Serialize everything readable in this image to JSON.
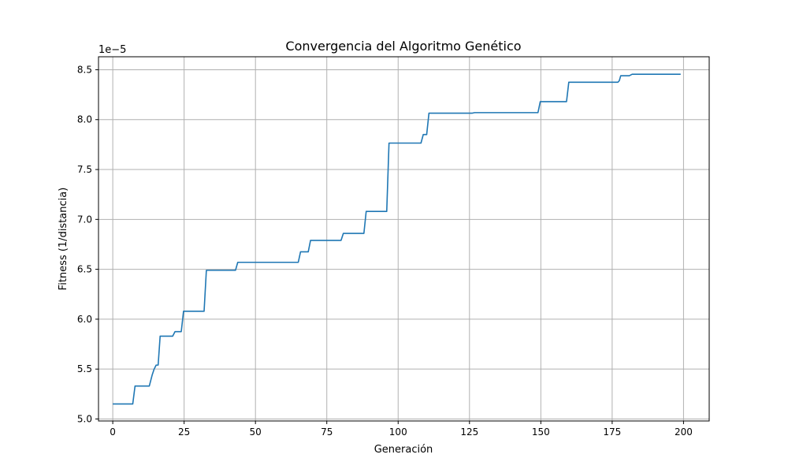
{
  "chart_data": {
    "type": "line",
    "title": "Convergencia del Algoritmo Genético",
    "xlabel": "Generación",
    "ylabel": "Fitness (1/distancia)",
    "y_offset_label": "1e−5",
    "y_scale": 1e-05,
    "xlim": [
      -5,
      209
    ],
    "ylim": [
      4.98,
      8.63
    ],
    "xticks": [
      0,
      25,
      50,
      75,
      100,
      125,
      150,
      175,
      200
    ],
    "xtick_labels": [
      "0",
      "25",
      "50",
      "75",
      "100",
      "125",
      "150",
      "175",
      "200"
    ],
    "yticks": [
      5.0,
      5.5,
      6.0,
      6.5,
      7.0,
      7.5,
      8.0,
      8.5
    ],
    "ytick_labels": [
      "5.0",
      "5.5",
      "6.0",
      "6.5",
      "7.0",
      "7.5",
      "8.0",
      "8.5"
    ],
    "grid": true,
    "line_color": "#1f77b4",
    "series": [
      {
        "x": [
          0,
          7,
          7.8,
          12.8,
          13.8,
          14.5,
          15.2,
          15.9,
          16.6,
          21,
          21.8,
          24,
          24.8,
          32,
          32.8,
          43,
          43.8,
          65,
          65.8,
          68.5,
          69.3,
          80,
          80.8,
          88,
          88.8,
          96,
          96.8,
          108,
          108.8,
          110,
          110.8,
          126,
          126.8,
          149,
          149.8,
          159,
          159.8,
          177,
          177.5,
          178,
          181,
          182,
          199
        ],
        "y": [
          5.15,
          5.15,
          5.33,
          5.33,
          5.44,
          5.5,
          5.54,
          5.54,
          5.83,
          5.83,
          5.875,
          5.875,
          6.08,
          6.08,
          6.49,
          6.49,
          6.57,
          6.57,
          6.675,
          6.675,
          6.79,
          6.79,
          6.86,
          6.86,
          7.08,
          7.08,
          7.765,
          7.765,
          7.85,
          7.85,
          8.065,
          8.065,
          8.07,
          8.07,
          8.18,
          8.18,
          8.375,
          8.375,
          8.39,
          8.44,
          8.44,
          8.455,
          8.455
        ]
      }
    ]
  }
}
